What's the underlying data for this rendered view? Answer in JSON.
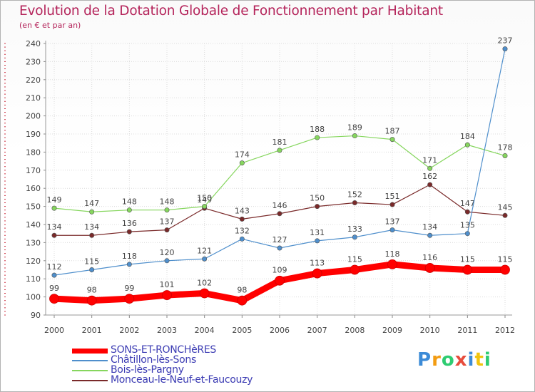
{
  "title": "Evolution de la Dotation Globale de Fonctionnement par Habitant",
  "subtitle": "(en € et par an)",
  "logo": {
    "letters": [
      "P",
      "r",
      "o",
      "x",
      "i",
      "t",
      "i"
    ],
    "colors": [
      "#3c8bd7",
      "#f39c12",
      "#2ecc71",
      "#e74c3c",
      "#3c8bd7",
      "#f1c40f",
      "#2ecc71"
    ]
  },
  "chart_data": {
    "type": "line",
    "title": "Evolution de la Dotation Globale de Fonctionnement par Habitant",
    "ylabel": "(en € et par an)",
    "xlabel": "",
    "x": [
      "2000",
      "2001",
      "2002",
      "2003",
      "2004",
      "2005",
      "2006",
      "2007",
      "2008",
      "2009",
      "2010",
      "2011",
      "2012"
    ],
    "ylim": [
      90,
      240
    ],
    "yticks": [
      90,
      100,
      110,
      120,
      130,
      140,
      150,
      160,
      170,
      180,
      190,
      200,
      210,
      220,
      230,
      240
    ],
    "grid": true,
    "legend_position": "bottom-left",
    "series": [
      {
        "name": "SONS-ET-RONCHèRES",
        "color": "#ff0000",
        "values": [
          99,
          98,
          99,
          101,
          102,
          98,
          109,
          113,
          115,
          118,
          116,
          115,
          115
        ],
        "labels": [
          "99",
          "98",
          "99",
          "101",
          "102",
          "98",
          "109",
          "113",
          "115",
          "118",
          "116",
          "115",
          "115"
        ]
      },
      {
        "name": "Châtillon-lès-Sons",
        "color": "#4f8fcc",
        "values": [
          112,
          115,
          118,
          120,
          121,
          132,
          127,
          131,
          133,
          137,
          134,
          135,
          237
        ],
        "labels": [
          "112",
          "115",
          "118",
          "120",
          "121",
          "132",
          "127",
          "131",
          "133",
          "137",
          "134",
          "135",
          "237"
        ]
      },
      {
        "name": "Bois-lès-Pargny",
        "color": "#86d65e",
        "values": [
          149,
          147,
          148,
          148,
          150,
          174,
          181,
          188,
          189,
          187,
          171,
          184,
          178
        ],
        "labels": [
          "149",
          "147",
          "148",
          "148",
          "150",
          "174",
          "181",
          "188",
          "189",
          "187",
          "171",
          "184",
          "178"
        ]
      },
      {
        "name": "Monceau-le-Neuf-et-Faucouzy",
        "color": "#7a2a2a",
        "values": [
          134,
          134,
          136,
          137,
          149,
          143,
          146,
          150,
          152,
          151,
          162,
          147,
          145
        ],
        "labels": [
          "134",
          "134",
          "136",
          "137",
          "149",
          "143",
          "146",
          "150",
          "152",
          "151",
          "162",
          "147",
          "145"
        ]
      }
    ]
  }
}
